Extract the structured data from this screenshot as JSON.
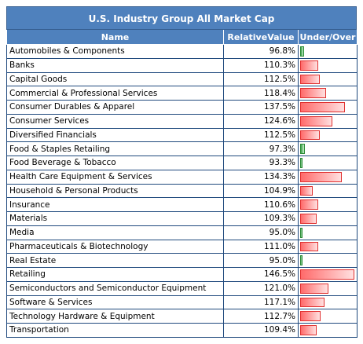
{
  "title": "U.S. Industry Group All Market Cap",
  "columns": {
    "name": "Name",
    "value": "RelativeValue",
    "bar": "Under/Over"
  },
  "colors": {
    "header": "#4f81bd",
    "over": "#ff6a6a",
    "under": "#3aa04a",
    "grid": "#1f497d"
  },
  "rows": [
    {
      "name": "Automobiles & Components",
      "value": "96.8%",
      "pct": 96.8
    },
    {
      "name": "Banks",
      "value": "110.3%",
      "pct": 110.3
    },
    {
      "name": "Capital Goods",
      "value": "112.5%",
      "pct": 112.5
    },
    {
      "name": "Commercial & Professional Services",
      "value": "118.4%",
      "pct": 118.4
    },
    {
      "name": "Consumer Durables & Apparel",
      "value": "137.5%",
      "pct": 137.5
    },
    {
      "name": "Consumer Services",
      "value": "124.6%",
      "pct": 124.6
    },
    {
      "name": "Diversified Financials",
      "value": "112.5%",
      "pct": 112.5
    },
    {
      "name": "Food & Staples Retailing",
      "value": "97.3%",
      "pct": 97.3
    },
    {
      "name": "Food Beverage & Tobacco",
      "value": "93.3%",
      "pct": 93.3
    },
    {
      "name": "Health Care Equipment & Services",
      "value": "134.3%",
      "pct": 134.3
    },
    {
      "name": "Household & Personal Products",
      "value": "104.9%",
      "pct": 104.9
    },
    {
      "name": "Insurance",
      "value": "110.6%",
      "pct": 110.6
    },
    {
      "name": "Materials",
      "value": "109.3%",
      "pct": 109.3
    },
    {
      "name": "Media",
      "value": "95.0%",
      "pct": 95.0
    },
    {
      "name": "Pharmaceuticals & Biotechnology",
      "value": "111.0%",
      "pct": 111.0
    },
    {
      "name": "Real Estate",
      "value": "95.0%",
      "pct": 95.0
    },
    {
      "name": "Retailing",
      "value": "146.5%",
      "pct": 146.5
    },
    {
      "name": "Semiconductors and Semiconductor Equipment",
      "value": "121.0%",
      "pct": 121.0
    },
    {
      "name": "Software & Services",
      "value": "117.1%",
      "pct": 117.1
    },
    {
      "name": "Technology Hardware & Equipment",
      "value": "112.7%",
      "pct": 112.7
    },
    {
      "name": "Transportation",
      "value": "109.4%",
      "pct": 109.4
    }
  ]
}
